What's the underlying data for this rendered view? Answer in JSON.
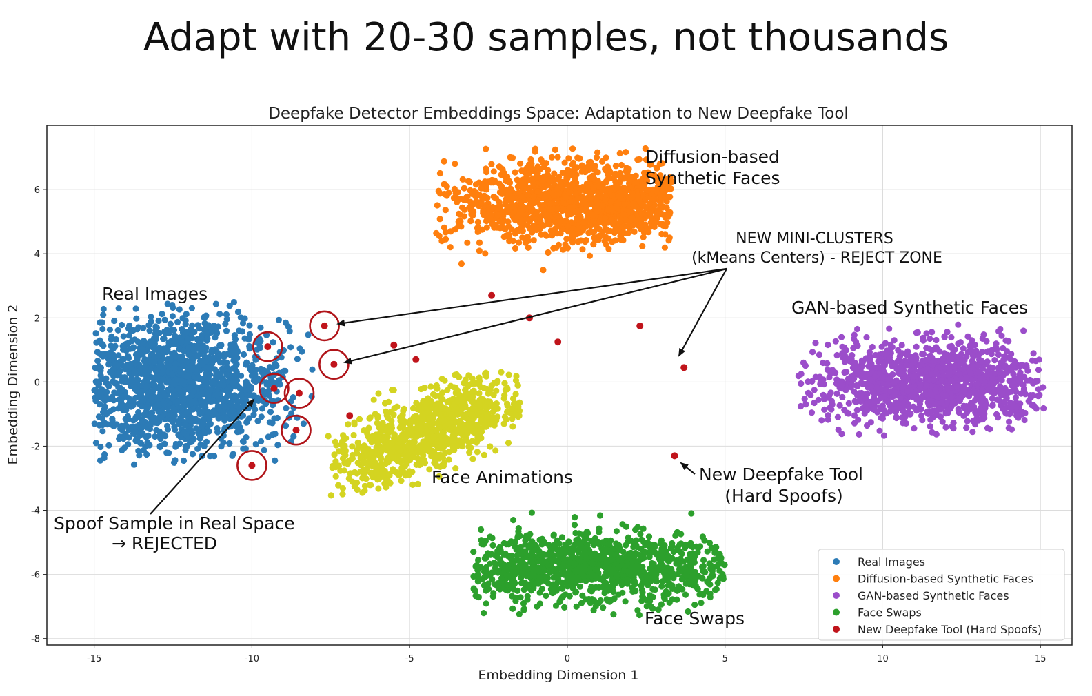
{
  "headline": "Adapt with 20-30 samples, not thousands",
  "chart_data": {
    "type": "scatter",
    "title": "Deepfake Detector Embeddings Space: Adaptation to New Deepfake Tool",
    "xlabel": "Embedding Dimension 1",
    "ylabel": "Embedding Dimension 2",
    "xlim": [
      -16.5,
      16
    ],
    "ylim": [
      -8.2,
      8
    ],
    "x_ticks": [
      -15,
      -10,
      -5,
      0,
      5,
      10,
      15
    ],
    "x_tick_labels": [
      "-15",
      "-10",
      "-5",
      "0",
      "5",
      "10",
      "15"
    ],
    "y_ticks": [
      -8,
      -6,
      -4,
      -2,
      0,
      2,
      4,
      6
    ],
    "y_tick_labels": [
      "-8",
      "-6",
      "-4",
      "-2",
      "0",
      "2",
      "4",
      "6"
    ],
    "grid": true,
    "legend_position": "bottom-right",
    "series": [
      {
        "name": "Real Images",
        "color": "#2c7bb6",
        "count": 1500,
        "distribution": {
          "center": [
            -12.3,
            -0.05
          ],
          "spread": [
            1.7,
            1.05
          ],
          "rotation_deg": 0,
          "x_range": [
            -15.0,
            -8.0
          ],
          "y_range": [
            -2.6,
            2.5
          ]
        }
      },
      {
        "name": "Diffusion-based Synthetic Faces",
        "color": "#ff7f0e",
        "count": 1300,
        "distribution": {
          "center": [
            0.3,
            5.6
          ],
          "spread": [
            2.2,
            0.65
          ],
          "rotation_deg": 0,
          "x_range": [
            -4.2,
            3.3
          ],
          "y_range": [
            3.0,
            7.3
          ]
        }
      },
      {
        "name": "GAN-based Synthetic Faces",
        "color": "#9b4dca",
        "count": 1200,
        "distribution": {
          "center": [
            11.6,
            0.0
          ],
          "spread": [
            1.9,
            0.6
          ],
          "rotation_deg": 0,
          "x_range": [
            7.3,
            15.1
          ],
          "y_range": [
            -1.8,
            1.8
          ]
        }
      },
      {
        "name": "Face Swaps",
        "color": "#2ca02c",
        "count": 1100,
        "distribution": {
          "center": [
            0.6,
            -5.8
          ],
          "spread": [
            2.6,
            0.55
          ],
          "rotation_deg": 0,
          "x_range": [
            -3.0,
            5.0
          ],
          "y_range": [
            -7.4,
            -3.6
          ]
        }
      },
      {
        "name": "Face Animations",
        "color": "#d4d421",
        "count": 900,
        "distribution": {
          "center": [
            -4.5,
            -1.6
          ],
          "spread": [
            1.8,
            0.55
          ],
          "rotation_deg": 25,
          "x_range": [
            -7.6,
            -1.5
          ],
          "y_range": [
            -3.6,
            0.4
          ]
        }
      },
      {
        "name": "New Deepfake Tool (Hard Spoofs)",
        "color": "#c0141b",
        "points": [
          {
            "x": -7.7,
            "y": 1.75
          },
          {
            "x": -9.5,
            "y": 1.1
          },
          {
            "x": -7.4,
            "y": 0.55
          },
          {
            "x": -9.3,
            "y": -0.2
          },
          {
            "x": -8.5,
            "y": -0.35
          },
          {
            "x": -8.6,
            "y": -1.5
          },
          {
            "x": -10.0,
            "y": -2.6
          },
          {
            "x": -2.4,
            "y": 2.7
          },
          {
            "x": -1.2,
            "y": 2.0
          },
          {
            "x": -0.3,
            "y": 1.25
          },
          {
            "x": 2.3,
            "y": 1.75
          },
          {
            "x": -5.5,
            "y": 1.15
          },
          {
            "x": -4.8,
            "y": 0.7
          },
          {
            "x": -6.9,
            "y": -1.05
          },
          {
            "x": 3.7,
            "y": 0.45
          },
          {
            "x": 3.4,
            "y": -2.3
          }
        ]
      }
    ],
    "circled_points_index": [
      0,
      1,
      2,
      3,
      4,
      5,
      6
    ],
    "annotations": [
      {
        "lines": [
          "Diffusion-based",
          "Synthetic Faces"
        ]
      },
      {
        "lines": [
          "NEW MINI-CLUSTERS",
          "(kMeans Centers) - REJECT ZONE"
        ]
      },
      {
        "lines": [
          "Real Images"
        ]
      },
      {
        "lines": [
          "GAN-based Synthetic Faces"
        ]
      },
      {
        "lines": [
          "Face Animations"
        ]
      },
      {
        "lines": [
          "New Deepfake Tool",
          "(Hard Spoofs)"
        ]
      },
      {
        "lines": [
          "Spoof Sample in Real Space",
          "→ REJECTED"
        ]
      },
      {
        "lines": [
          "Face Swaps"
        ]
      }
    ],
    "legend": [
      "Real Images",
      "Diffusion-based Synthetic Faces",
      "GAN-based Synthetic Faces",
      "Face Swaps",
      "New Deepfake Tool (Hard Spoofs)"
    ]
  }
}
